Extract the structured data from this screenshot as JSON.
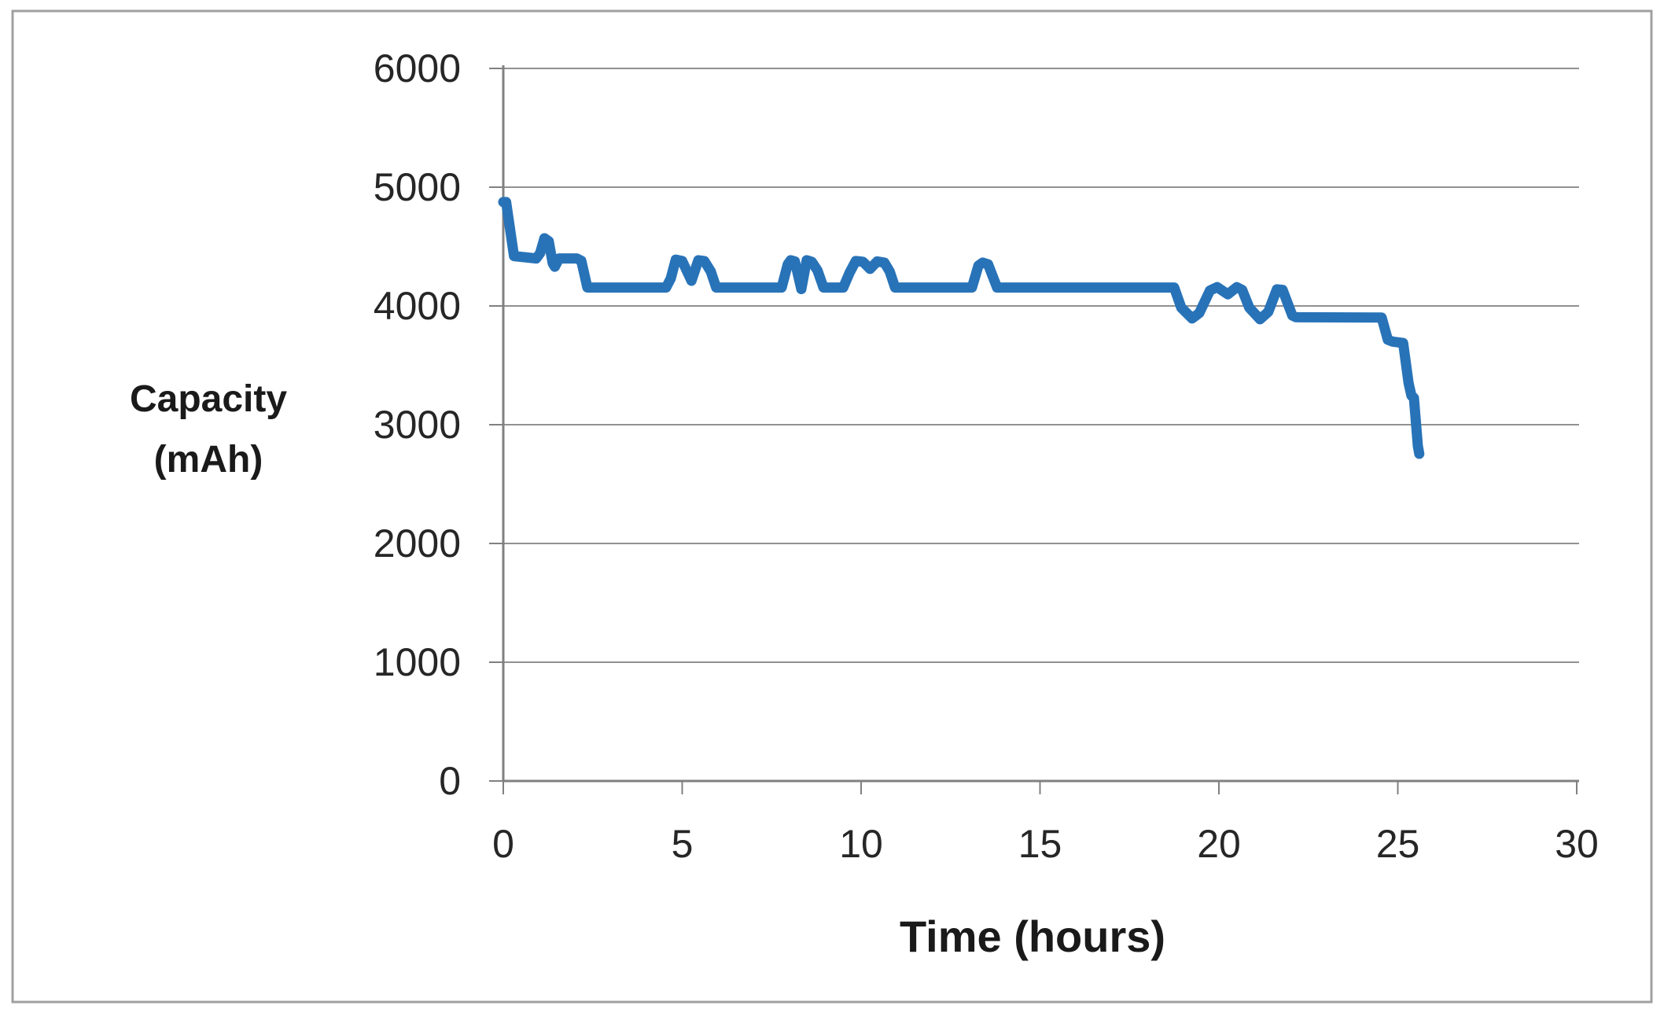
{
  "chart_data": {
    "type": "line",
    "title": "",
    "xlabel": "Time (hours)",
    "ylabel": "Capacity (mAh)",
    "ylabel_lines": [
      "Capacity",
      "(mAh)"
    ],
    "xlim": [
      0,
      30
    ],
    "ylim": [
      0,
      6000
    ],
    "xticks": [
      0,
      5,
      10,
      15,
      20,
      25,
      30
    ],
    "yticks": [
      0,
      1000,
      2000,
      3000,
      4000,
      5000,
      6000
    ],
    "grid": "horizontal-only",
    "legend": "none",
    "series": [
      {
        "name": "Capacity (mAh)",
        "color": "#2873b8",
        "points": [
          [
            0,
            4875
          ],
          [
            0.08,
            4875
          ],
          [
            0.3,
            4420
          ],
          [
            0.92,
            4400
          ],
          [
            1.03,
            4445
          ],
          [
            1.15,
            4570
          ],
          [
            1.27,
            4545
          ],
          [
            1.38,
            4360
          ],
          [
            1.44,
            4330
          ],
          [
            1.56,
            4400
          ],
          [
            2.05,
            4400
          ],
          [
            2.18,
            4380
          ],
          [
            2.35,
            4155
          ],
          [
            4.55,
            4155
          ],
          [
            4.68,
            4230
          ],
          [
            4.82,
            4390
          ],
          [
            5.0,
            4378
          ],
          [
            5.26,
            4212
          ],
          [
            5.45,
            4385
          ],
          [
            5.62,
            4378
          ],
          [
            5.8,
            4290
          ],
          [
            5.95,
            4155
          ],
          [
            7.78,
            4155
          ],
          [
            7.95,
            4350
          ],
          [
            8.03,
            4385
          ],
          [
            8.15,
            4375
          ],
          [
            8.33,
            4142
          ],
          [
            8.48,
            4385
          ],
          [
            8.62,
            4372
          ],
          [
            8.78,
            4300
          ],
          [
            8.95,
            4155
          ],
          [
            9.5,
            4155
          ],
          [
            9.68,
            4280
          ],
          [
            9.85,
            4378
          ],
          [
            10.05,
            4372
          ],
          [
            10.25,
            4312
          ],
          [
            10.45,
            4375
          ],
          [
            10.65,
            4365
          ],
          [
            10.8,
            4290
          ],
          [
            10.95,
            4155
          ],
          [
            13.1,
            4155
          ],
          [
            13.28,
            4340
          ],
          [
            13.4,
            4365
          ],
          [
            13.55,
            4350
          ],
          [
            13.8,
            4155
          ],
          [
            18.75,
            4155
          ],
          [
            18.95,
            3985
          ],
          [
            19.25,
            3895
          ],
          [
            19.45,
            3940
          ],
          [
            19.75,
            4130
          ],
          [
            19.95,
            4158
          ],
          [
            20.25,
            4098
          ],
          [
            20.5,
            4158
          ],
          [
            20.65,
            4135
          ],
          [
            20.85,
            3985
          ],
          [
            21.15,
            3888
          ],
          [
            21.38,
            3950
          ],
          [
            21.62,
            4140
          ],
          [
            21.78,
            4135
          ],
          [
            22.05,
            3920
          ],
          [
            22.15,
            3905
          ],
          [
            24.55,
            3902
          ],
          [
            24.72,
            3715
          ],
          [
            24.85,
            3700
          ],
          [
            25.15,
            3688
          ],
          [
            25.3,
            3350
          ],
          [
            25.38,
            3245
          ],
          [
            25.45,
            3225
          ],
          [
            25.56,
            2820
          ],
          [
            25.6,
            2755
          ]
        ]
      }
    ]
  },
  "colors": {
    "line": "#2873b8",
    "axis": "#808080",
    "grid": "#919191",
    "border": "#a0a0a0",
    "text": "#262626"
  }
}
